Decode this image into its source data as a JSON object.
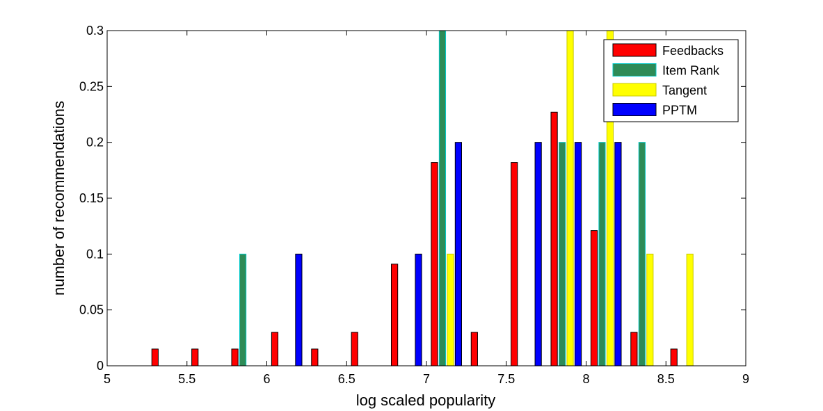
{
  "chart_data": {
    "type": "bar",
    "title": "",
    "xlabel": "log scaled popularity",
    "ylabel": "number of recommendations",
    "xlim": [
      5,
      9
    ],
    "ylim": [
      0,
      0.3
    ],
    "xticks": [
      5,
      5.5,
      6,
      6.5,
      7,
      7.5,
      8,
      8.5,
      9
    ],
    "xtick_labels": [
      "5",
      "5.5",
      "6",
      "6.5",
      "7",
      "7.5",
      "8",
      "8.5",
      "9"
    ],
    "yticks": [
      0,
      0.05,
      0.1,
      0.15,
      0.2,
      0.25,
      0.3
    ],
    "ytick_labels": [
      "0",
      "0.05",
      "0.1",
      "0.15",
      "0.2",
      "0.25",
      "0.3"
    ],
    "grid": false,
    "legend_position": "top-right",
    "bin_centers": [
      5.125,
      5.375,
      5.625,
      5.875,
      6.125,
      6.375,
      6.625,
      6.875,
      7.125,
      7.375,
      7.625,
      7.875,
      8.125,
      8.375,
      8.625,
      8.875
    ],
    "series": [
      {
        "name": "Feedbacks",
        "color": "#ff0000",
        "edge": "#000000",
        "values": [
          0,
          0.015,
          0.015,
          0.015,
          0.03,
          0.015,
          0.03,
          0.091,
          0.182,
          0.03,
          0.182,
          0.227,
          0.121,
          0.03,
          0.015,
          0
        ]
      },
      {
        "name": "Item Rank",
        "color": "#2e8b57",
        "edge": "#00c8c8",
        "values": [
          0,
          0,
          0,
          0.1,
          0,
          0,
          0,
          0,
          0.3,
          0,
          0,
          0.2,
          0.2,
          0.2,
          0,
          0
        ]
      },
      {
        "name": "Tangent",
        "color": "#ffff00",
        "edge": "#c8c800",
        "values": [
          0,
          0,
          0,
          0,
          0,
          0,
          0,
          0,
          0.1,
          0,
          0,
          0.3,
          0.3,
          0.1,
          0.1,
          0
        ]
      },
      {
        "name": "PPTM",
        "color": "#0000ff",
        "edge": "#000000",
        "values": [
          0,
          0,
          0,
          0,
          0.1,
          0,
          0,
          0.1,
          0.2,
          0,
          0.2,
          0.2,
          0.2,
          0,
          0,
          0
        ]
      }
    ]
  }
}
